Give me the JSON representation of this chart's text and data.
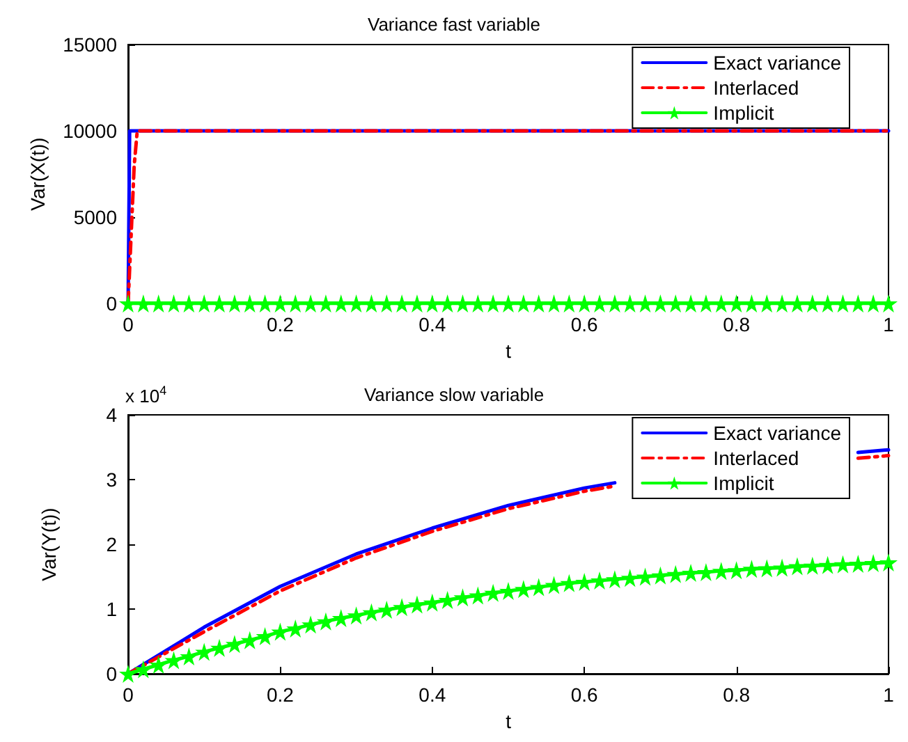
{
  "chart_data": [
    {
      "type": "line",
      "title": "Variance fast variable",
      "xlabel": "t",
      "ylabel": "Var(X(t))",
      "xlim": [
        0,
        1
      ],
      "xticks": [
        0,
        0.2,
        0.4,
        0.6,
        0.8,
        1
      ],
      "ylim": [
        0,
        15000
      ],
      "yticks": [
        0,
        5000,
        10000,
        15000
      ],
      "grid": false,
      "legend": "top right",
      "series": [
        {
          "name": "Exact variance",
          "color": "#0000ff",
          "line_style": "solid",
          "marker": "none",
          "x": [
            0,
            0.002,
            1
          ],
          "values": [
            0,
            10000,
            10000
          ]
        },
        {
          "name": "Interlaced",
          "color": "#ff0000",
          "line_style": "dashed",
          "marker": "none",
          "x": [
            0,
            0.004,
            0.008,
            0.012,
            1
          ],
          "values": [
            0,
            4000,
            8000,
            10000,
            10000
          ]
        },
        {
          "name": "Implicit",
          "color": "#00ff00",
          "line_style": "solid",
          "marker": "star",
          "x": [
            0,
            0.02,
            0.04,
            0.06,
            0.08,
            0.1,
            0.12,
            0.14,
            0.16,
            0.18,
            0.2,
            0.22,
            0.24,
            0.26,
            0.28,
            0.3,
            0.32,
            0.34,
            0.36,
            0.38,
            0.4,
            0.42,
            0.44,
            0.46,
            0.48,
            0.5,
            0.52,
            0.54,
            0.56,
            0.58,
            0.6,
            0.62,
            0.64,
            0.66,
            0.68,
            0.7,
            0.72,
            0.74,
            0.76,
            0.78,
            0.8,
            0.82,
            0.84,
            0.86,
            0.88,
            0.9,
            0.92,
            0.94,
            0.96,
            0.98,
            1
          ],
          "values": [
            0,
            0,
            0,
            0,
            0,
            0,
            0,
            0,
            0,
            0,
            0,
            0,
            0,
            0,
            0,
            0,
            0,
            0,
            0,
            0,
            0,
            0,
            0,
            0,
            0,
            0,
            0,
            0,
            0,
            0,
            0,
            0,
            0,
            0,
            0,
            0,
            0,
            0,
            0,
            0,
            0,
            0,
            0,
            0,
            0,
            0,
            0,
            0,
            0,
            0,
            0
          ]
        }
      ]
    },
    {
      "type": "line",
      "title": "Variance slow variable",
      "xlabel": "t",
      "ylabel": "Var(Y(t))",
      "annotations": [
        "x 10$^{4}$"
      ],
      "xlim": [
        0,
        1
      ],
      "xticks": [
        0,
        0.2,
        0.4,
        0.6,
        0.8,
        1
      ],
      "ylim": [
        0,
        4
      ],
      "yticks": [
        0,
        1,
        2,
        3,
        4
      ],
      "grid": false,
      "legend": "top right",
      "series": [
        {
          "name": "Exact variance",
          "color": "#0000ff",
          "line_style": "solid",
          "marker": "none",
          "x": [
            0,
            0.1,
            0.2,
            0.3,
            0.4,
            0.5,
            0.6,
            0.64,
            0.7,
            0.8,
            0.9,
            0.96,
            1
          ],
          "values": [
            0,
            0.72,
            1.35,
            1.85,
            2.25,
            2.6,
            2.87,
            2.95,
            null,
            null,
            null,
            3.42,
            3.46
          ]
        },
        {
          "name": "Interlaced",
          "color": "#ff0000",
          "line_style": "dashed",
          "marker": "none",
          "x": [
            0,
            0.1,
            0.2,
            0.3,
            0.4,
            0.5,
            0.6,
            0.64,
            0.7,
            0.8,
            0.9,
            0.96,
            1
          ],
          "values": [
            0,
            0.65,
            1.28,
            1.79,
            2.2,
            2.55,
            2.82,
            2.9,
            null,
            null,
            null,
            3.33,
            3.37
          ]
        },
        {
          "name": "Implicit",
          "color": "#00ff00",
          "line_style": "solid",
          "marker": "star",
          "x": [
            0,
            0.02,
            0.04,
            0.06,
            0.08,
            0.1,
            0.12,
            0.14,
            0.16,
            0.18,
            0.2,
            0.22,
            0.24,
            0.26,
            0.28,
            0.3,
            0.32,
            0.34,
            0.36,
            0.38,
            0.4,
            0.42,
            0.44,
            0.46,
            0.48,
            0.5,
            0.52,
            0.54,
            0.56,
            0.58,
            0.6,
            0.62,
            0.64,
            0.66,
            0.68,
            0.7,
            0.72,
            0.74,
            0.76,
            0.78,
            0.8,
            0.82,
            0.84,
            0.86,
            0.88,
            0.9,
            0.92,
            0.94,
            0.96,
            0.98,
            1
          ],
          "values": [
            0,
            0.07,
            0.14,
            0.21,
            0.27,
            0.34,
            0.4,
            0.46,
            0.52,
            0.58,
            0.65,
            0.7,
            0.76,
            0.81,
            0.86,
            0.9,
            0.95,
            0.99,
            1.03,
            1.07,
            1.1,
            1.14,
            1.18,
            1.21,
            1.25,
            1.28,
            1.31,
            1.34,
            1.37,
            1.4,
            1.42,
            1.44,
            1.46,
            1.48,
            1.5,
            1.52,
            1.54,
            1.56,
            1.57,
            1.59,
            1.6,
            1.62,
            1.63,
            1.64,
            1.66,
            1.67,
            1.68,
            1.69,
            1.7,
            1.71,
            1.72
          ]
        }
      ]
    }
  ]
}
